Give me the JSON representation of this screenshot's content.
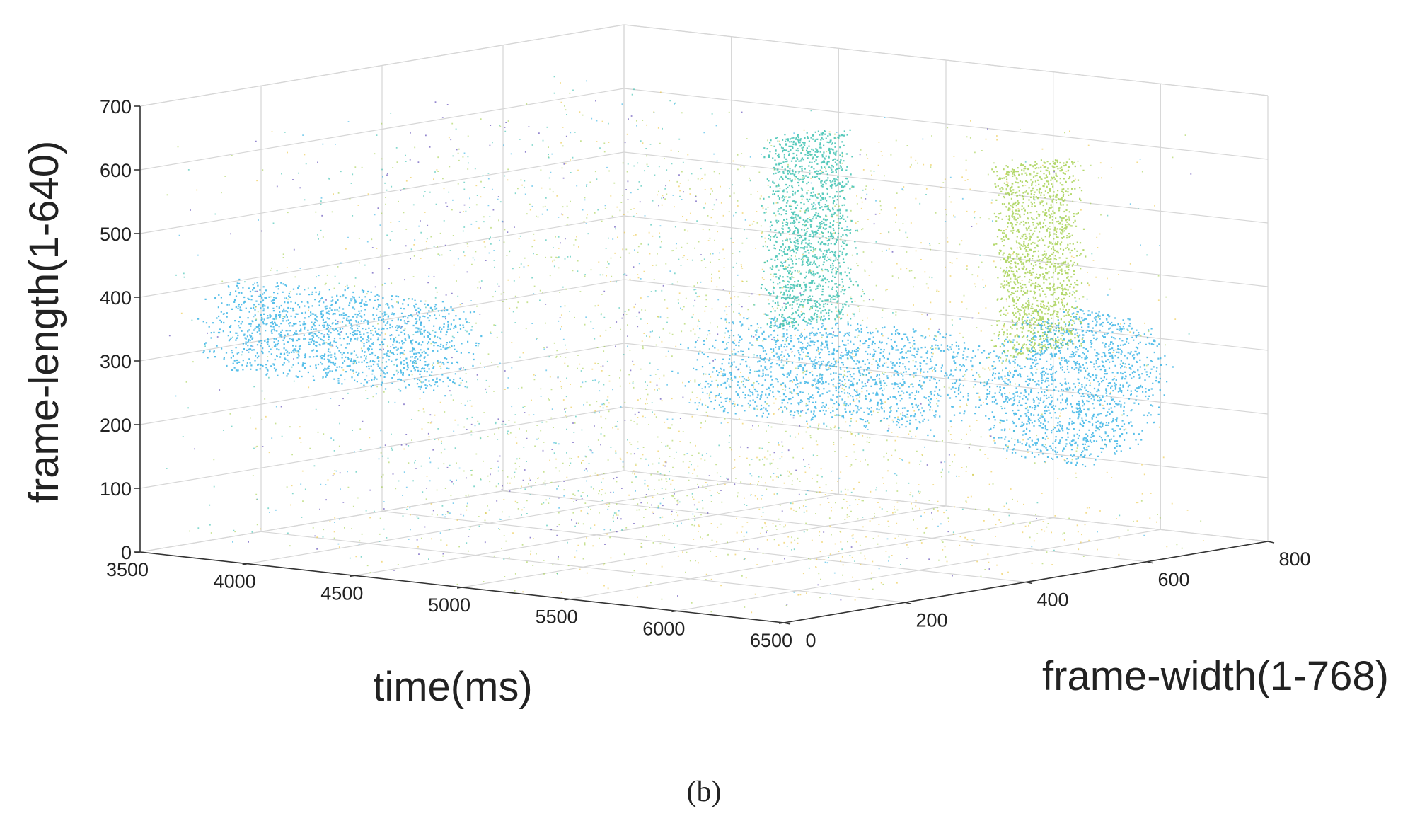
{
  "figure": {
    "caption": "(b)"
  },
  "chart_data": {
    "type": "scatter",
    "subtype": "3d-event-point-cloud",
    "title": "",
    "xlabel": "time(ms)",
    "ylabel": "frame-width(1-768)",
    "zlabel": "frame-length(1-640)",
    "xlim": [
      3500,
      6500
    ],
    "ylim": [
      0,
      800
    ],
    "zlim": [
      0,
      700
    ],
    "x_ticks": [
      3500,
      4000,
      4500,
      5000,
      5500,
      6000,
      6500
    ],
    "y_ticks": [
      0,
      200,
      400,
      600,
      800
    ],
    "z_ticks": [
      0,
      100,
      200,
      300,
      400,
      500,
      600,
      700
    ],
    "grid": true,
    "colormap": "parula",
    "colors": {
      "low": "#3e26a8",
      "mid_low": "#1fa9e1",
      "mid": "#21b8a5",
      "mid_high": "#9bcb3c",
      "high": "#e9c02c"
    },
    "structures": [
      {
        "name": "cylinder-left",
        "x": [
          3700,
          4750
        ],
        "y": [
          20,
          130
        ],
        "z": [
          280,
          430
        ]
      },
      {
        "name": "cylinder-center",
        "x": [
          5250,
          6300
        ],
        "y": [
          250,
          450
        ],
        "z": [
          230,
          390
        ]
      },
      {
        "name": "fin-left",
        "x": [
          5550,
          5650
        ],
        "y": [
          300,
          420
        ],
        "z": [
          380,
          680
        ]
      },
      {
        "name": "fin-right",
        "x": [
          6050,
          6150
        ],
        "y": [
          500,
          620
        ],
        "z": [
          320,
          620
        ]
      },
      {
        "name": "ellipse-disk",
        "x": [
          6100,
          6350
        ],
        "y": [
          450,
          700
        ],
        "z": [
          150,
          390
        ]
      }
    ]
  }
}
